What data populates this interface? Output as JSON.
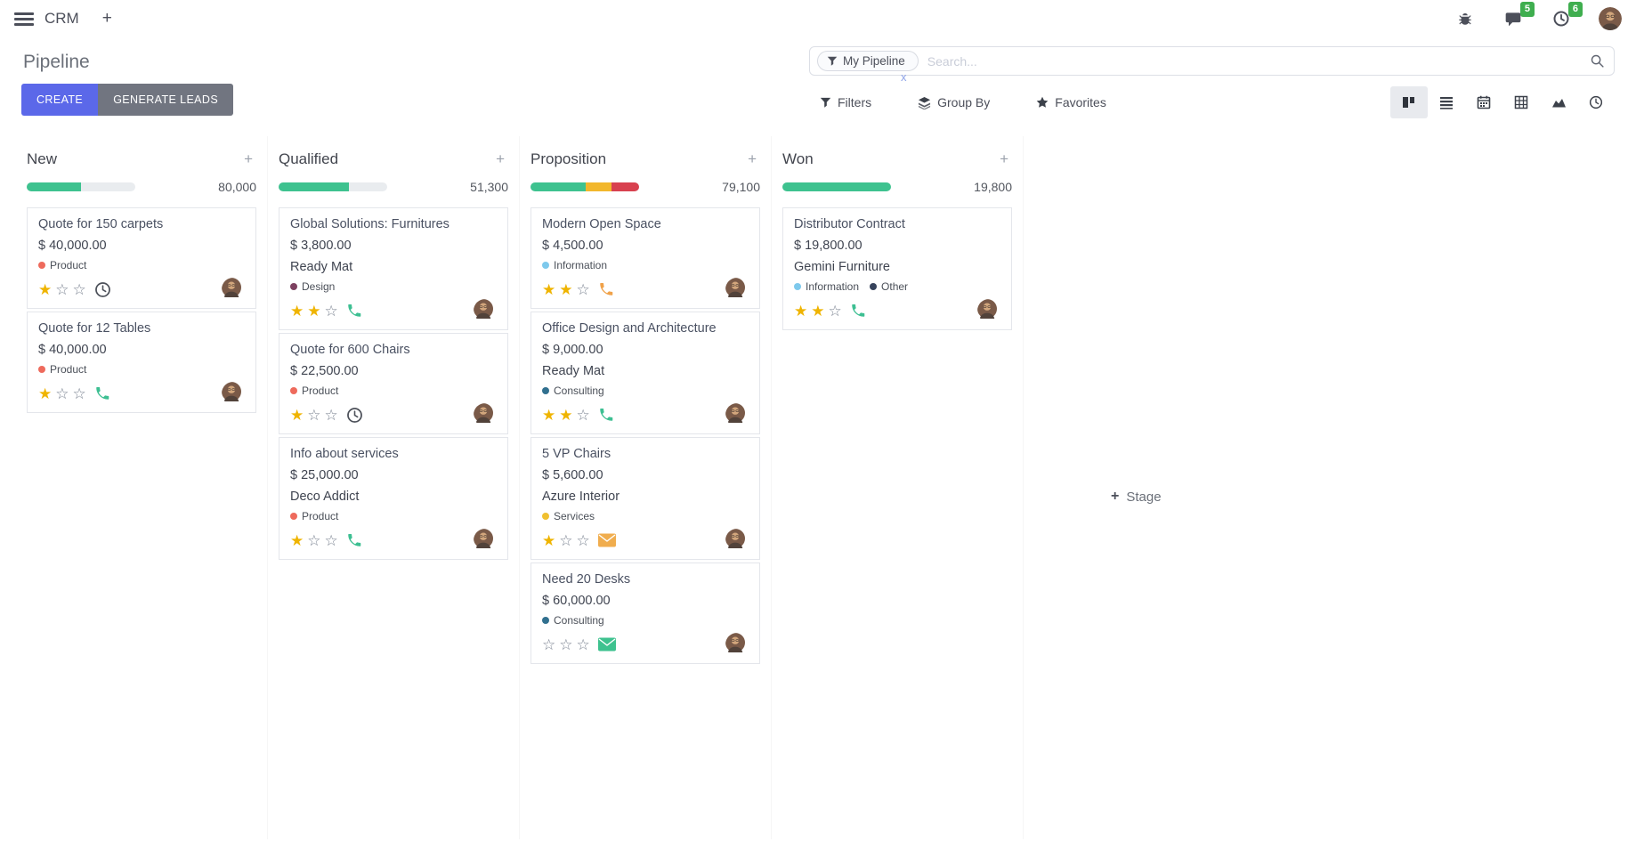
{
  "topbar": {
    "app_name": "CRM",
    "messages_badge": "5",
    "activities_badge": "6"
  },
  "control_panel": {
    "title": "Pipeline",
    "create_label": "CREATE",
    "generate_leads_label": "GENERATE LEADS",
    "search": {
      "facet": "My Pipeline",
      "placeholder": "Search...",
      "facet_remove": "x"
    },
    "menus": {
      "filters": "Filters",
      "group_by": "Group By",
      "favorites": "Favorites"
    },
    "active_view": "kanban"
  },
  "board": {
    "add_stage_label": "Stage",
    "colors": {
      "success": "#3ec28f",
      "warning": "#f2b72c",
      "danger": "#d8414f",
      "track": "#e9ecef"
    },
    "columns": [
      {
        "name": "New",
        "count": "80,000",
        "progress": [
          {
            "color": "#3ec28f",
            "pct": 50
          }
        ],
        "cards": [
          {
            "title": "Quote for 150 carpets",
            "amount": "$ 40,000.00",
            "partner": "",
            "tags": [
              {
                "label": "Product",
                "color": "#ee6a5c"
              }
            ],
            "stars": 1,
            "activity": "clock",
            "activity_color": "#4c5059"
          },
          {
            "title": "Quote for 12 Tables",
            "amount": "$ 40,000.00",
            "partner": "",
            "tags": [
              {
                "label": "Product",
                "color": "#ee6a5c"
              }
            ],
            "stars": 1,
            "activity": "phone",
            "activity_color": "#3dbf92"
          }
        ]
      },
      {
        "name": "Qualified",
        "count": "51,300",
        "progress": [
          {
            "color": "#3ec28f",
            "pct": 65
          }
        ],
        "cards": [
          {
            "title": "Global Solutions: Furnitures",
            "amount": "$ 3,800.00",
            "partner": "Ready Mat",
            "tags": [
              {
                "label": "Design",
                "color": "#7d4160"
              }
            ],
            "stars": 2,
            "activity": "phone",
            "activity_color": "#3dbf92"
          },
          {
            "title": "Quote for 600 Chairs",
            "amount": "$ 22,500.00",
            "partner": "",
            "tags": [
              {
                "label": "Product",
                "color": "#ee6a5c"
              }
            ],
            "stars": 1,
            "activity": "clock",
            "activity_color": "#4c5059"
          },
          {
            "title": "Info about services",
            "amount": "$ 25,000.00",
            "partner": "Deco Addict",
            "tags": [
              {
                "label": "Product",
                "color": "#ee6a5c"
              }
            ],
            "stars": 1,
            "activity": "phone",
            "activity_color": "#3dbf92"
          }
        ]
      },
      {
        "name": "Proposition",
        "count": "79,100",
        "progress": [
          {
            "color": "#3ec28f",
            "pct": 51
          },
          {
            "color": "#f2b72c",
            "pct": 24
          },
          {
            "color": "#d8414f",
            "pct": 25
          }
        ],
        "cards": [
          {
            "title": "Modern Open Space",
            "amount": "$ 4,500.00",
            "partner": "",
            "tags": [
              {
                "label": "Information",
                "color": "#7ec9ec"
              }
            ],
            "stars": 2,
            "activity": "phone",
            "activity_color": "#f0a24a"
          },
          {
            "title": "Office Design and Architecture",
            "amount": "$ 9,000.00",
            "partner": "Ready Mat",
            "tags": [
              {
                "label": "Consulting",
                "color": "#31708f"
              }
            ],
            "stars": 2,
            "activity": "phone",
            "activity_color": "#3dbf92"
          },
          {
            "title": "5 VP Chairs",
            "amount": "$ 5,600.00",
            "partner": "Azure Interior",
            "tags": [
              {
                "label": "Services",
                "color": "#f0c030"
              }
            ],
            "stars": 1,
            "activity": "envelope",
            "activity_color": "#f0ad4e"
          },
          {
            "title": "Need 20 Desks",
            "amount": "$ 60,000.00",
            "partner": "",
            "tags": [
              {
                "label": "Consulting",
                "color": "#31708f"
              }
            ],
            "stars": 0,
            "activity": "envelope",
            "activity_color": "#3ec28f"
          }
        ]
      },
      {
        "name": "Won",
        "count": "19,800",
        "progress": [
          {
            "color": "#3ec28f",
            "pct": 100
          }
        ],
        "cards": [
          {
            "title": "Distributor Contract",
            "amount": "$ 19,800.00",
            "partner": "Gemini Furniture",
            "tags": [
              {
                "label": "Information",
                "color": "#7ec9ec"
              },
              {
                "label": "Other",
                "color": "#37435c"
              }
            ],
            "stars": 2,
            "activity": "phone",
            "activity_color": "#3dbf92"
          }
        ]
      }
    ]
  }
}
